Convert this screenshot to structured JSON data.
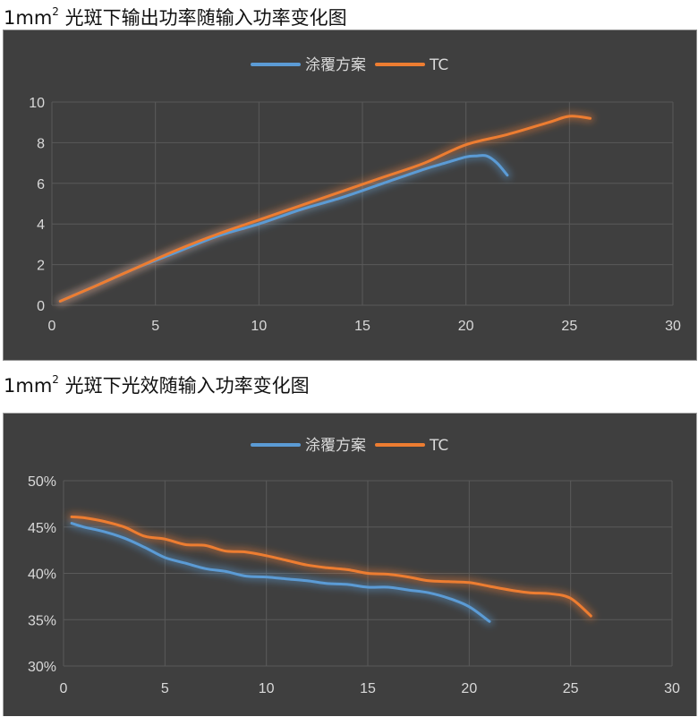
{
  "captions": {
    "chart1_prefix": "1mm",
    "chart1_sup": "2",
    "chart1_suffix": " 光斑下输出功率随输入功率变化图",
    "chart2_prefix": "1mm",
    "chart2_sup": "2",
    "chart2_suffix": " 光斑下光效随输入功率变化图"
  },
  "colors": {
    "background": "#3f3f3f",
    "series_blue": "#5b9bd5",
    "series_orange": "#ed7d31",
    "grid": "#5a5a5a",
    "text": "#d9d9d9"
  },
  "chart_data": [
    {
      "type": "line",
      "title": "",
      "xlabel": "",
      "ylabel": "",
      "xlim": [
        0,
        30
      ],
      "ylim": [
        0,
        10
      ],
      "x_ticks": [
        0,
        5,
        10,
        15,
        20,
        25,
        30
      ],
      "x_tick_labels": [
        "0",
        "5",
        "10",
        "15",
        "20",
        "25",
        "30"
      ],
      "y_ticks": [
        0,
        2,
        4,
        6,
        8,
        10
      ],
      "y_tick_labels": [
        "0",
        "2",
        "4",
        "6",
        "8",
        "10"
      ],
      "grid": true,
      "legend_position": "top",
      "series": [
        {
          "name": "涂覆方案",
          "color": "#5b9bd5",
          "x": [
            0.4,
            2,
            4,
            6,
            8,
            10,
            12,
            14,
            16,
            18,
            19,
            20,
            20.5,
            21,
            21.5,
            22
          ],
          "y": [
            0.2,
            0.9,
            1.8,
            2.6,
            3.4,
            4.0,
            4.7,
            5.3,
            6.0,
            6.7,
            7.0,
            7.3,
            7.35,
            7.35,
            7.0,
            6.4
          ]
        },
        {
          "name": "TC",
          "color": "#ed7d31",
          "x": [
            0.4,
            2,
            4,
            6,
            8,
            10,
            12,
            14,
            16,
            18,
            20,
            22,
            24,
            25,
            26
          ],
          "y": [
            0.2,
            0.9,
            1.8,
            2.7,
            3.5,
            4.2,
            4.9,
            5.6,
            6.3,
            7.0,
            7.9,
            8.4,
            9.0,
            9.3,
            9.2
          ]
        }
      ]
    },
    {
      "type": "line",
      "title": "",
      "xlabel": "",
      "ylabel": "",
      "xlim": [
        0,
        30
      ],
      "ylim": [
        30,
        50
      ],
      "x_ticks": [
        0,
        5,
        10,
        15,
        20,
        25,
        30
      ],
      "x_tick_labels": [
        "0",
        "5",
        "10",
        "15",
        "20",
        "25",
        "30"
      ],
      "y_ticks": [
        30,
        35,
        40,
        45,
        50
      ],
      "y_tick_labels": [
        "30%",
        "35%",
        "40%",
        "45%",
        "50%"
      ],
      "grid": true,
      "legend_position": "top",
      "series": [
        {
          "name": "涂覆方案",
          "color": "#5b9bd5",
          "x": [
            0.4,
            1,
            2,
            3,
            4,
            5,
            6,
            7,
            8,
            9,
            10,
            11,
            12,
            13,
            14,
            15,
            16,
            17,
            18,
            19,
            20,
            21
          ],
          "y": [
            45.4,
            45.0,
            44.5,
            43.8,
            42.8,
            41.7,
            41.1,
            40.5,
            40.2,
            39.7,
            39.6,
            39.4,
            39.2,
            38.9,
            38.8,
            38.5,
            38.5,
            38.2,
            37.9,
            37.3,
            36.4,
            34.8
          ]
        },
        {
          "name": "TC",
          "color": "#ed7d31",
          "x": [
            0.4,
            1,
            2,
            3,
            4,
            5,
            6,
            7,
            8,
            9,
            10,
            11,
            12,
            13,
            14,
            15,
            16,
            17,
            18,
            19,
            20,
            21,
            22,
            23,
            24,
            25,
            26
          ],
          "y": [
            46.1,
            46.0,
            45.6,
            45.0,
            44.0,
            43.7,
            43.1,
            43.0,
            42.4,
            42.3,
            41.9,
            41.4,
            40.9,
            40.6,
            40.4,
            40.0,
            39.9,
            39.6,
            39.2,
            39.1,
            39.0,
            38.6,
            38.2,
            37.9,
            37.8,
            37.3,
            35.4
          ]
        }
      ]
    }
  ]
}
